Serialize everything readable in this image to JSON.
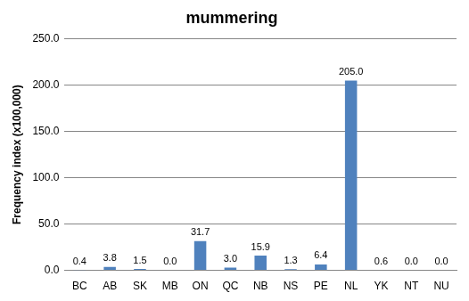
{
  "chart_data": {
    "type": "bar",
    "title": "mummering",
    "y_label": "Frequency index (x100,000)",
    "categories": [
      "BC",
      "AB",
      "SK",
      "MB",
      "ON",
      "QC",
      "NB",
      "NS",
      "PE",
      "NL",
      "YK",
      "NT",
      "NU"
    ],
    "values": [
      0.4,
      3.8,
      1.5,
      0.0,
      31.7,
      3.0,
      15.9,
      1.3,
      6.4,
      205.0,
      0.6,
      0.0,
      0.0
    ],
    "value_labels": [
      "0.4",
      "3.8",
      "1.5",
      "0.0",
      "31.7",
      "3.0",
      "15.9",
      "1.3",
      "6.4",
      "205.0",
      "0.6",
      "0.0",
      "0.0"
    ],
    "color": "#4f81bd",
    "ylim": [
      0,
      250
    ],
    "yticks": [
      {
        "value": 0,
        "label": "0.0"
      },
      {
        "value": 50,
        "label": "50.0"
      },
      {
        "value": 100,
        "label": "100.0"
      },
      {
        "value": 150,
        "label": "150.0"
      },
      {
        "value": 200,
        "label": "200.0"
      },
      {
        "value": 250,
        "label": "250.0"
      }
    ],
    "grid": true,
    "data_labels": true
  }
}
